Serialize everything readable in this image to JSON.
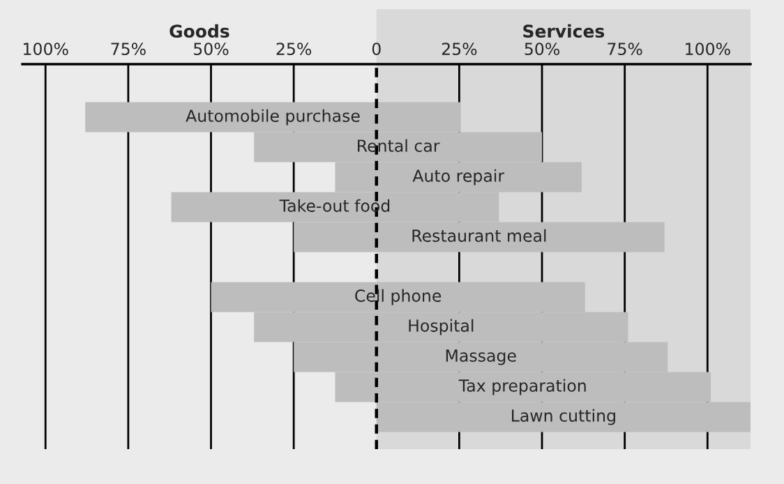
{
  "chart_data": {
    "type": "bar",
    "orientation": "horizontal",
    "categories": [
      "Automobile purchase",
      "Rental car",
      "Auto repair",
      "Take-out food",
      "Restaurant meal",
      null,
      "Cell phone",
      "Hospital",
      "Massage",
      "Tax preparation",
      "Lawn cutting"
    ],
    "base": [
      -88,
      -37,
      -12.5,
      -62,
      -25,
      null,
      -50,
      -37,
      -25,
      -12.5,
      0
    ],
    "values": [
      113.5,
      87,
      74.5,
      99,
      112,
      null,
      113,
      113,
      113,
      113.5,
      113
    ],
    "color": "#bdbdbd",
    "xlim": [
      -107,
      113
    ],
    "xticks": [
      {
        "value": -100,
        "label": "100%"
      },
      {
        "value": -75,
        "label": "75%"
      },
      {
        "value": -50,
        "label": "50%"
      },
      {
        "value": -25,
        "label": "25%"
      },
      0,
      {
        "value": 25,
        "label": "25%"
      },
      {
        "value": 50,
        "label": "50%"
      },
      {
        "value": 75,
        "label": "75%"
      },
      {
        "value": 100,
        "label": "100%"
      }
    ],
    "grid": "x",
    "ref_lines": [
      {
        "axis": "x",
        "value": 0,
        "color": "#000000",
        "line_style": "dashed"
      }
    ],
    "annotations": [
      "Goods"
    ],
    "bands": [
      {
        "axis": "x",
        "from": 0,
        "to": 113,
        "label": "Services",
        "color": "#d9d9d9"
      }
    ]
  }
}
